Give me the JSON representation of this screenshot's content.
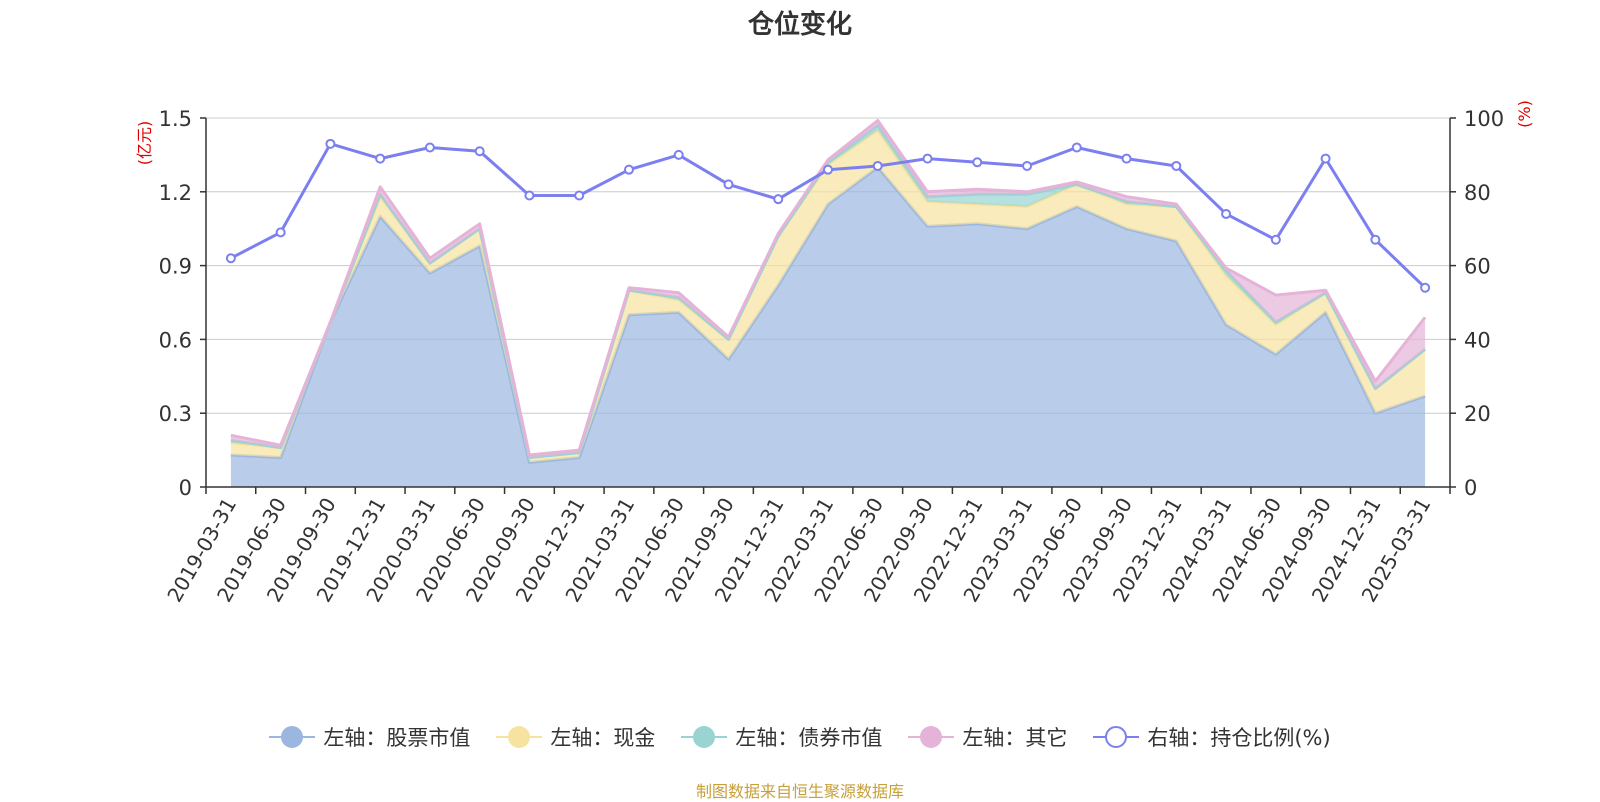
{
  "chart_data": {
    "type": "area",
    "title": "仓位变化",
    "left_axis_unit": "(亿元)",
    "right_axis_unit": "(%)",
    "left_ylim": [
      0,
      1.5
    ],
    "left_ticks": [
      "0",
      "0.3",
      "0.6",
      "0.9",
      "1.2",
      "1.5"
    ],
    "right_ylim": [
      0,
      100
    ],
    "right_ticks": [
      "0",
      "20",
      "40",
      "60",
      "80",
      "100"
    ],
    "grid": true,
    "legend_position": "bottom",
    "x": [
      "2019-03-31",
      "2019-06-30",
      "2019-09-30",
      "2019-12-31",
      "2020-03-31",
      "2020-06-30",
      "2020-09-30",
      "2020-12-31",
      "2021-03-31",
      "2021-06-30",
      "2021-09-30",
      "2021-12-31",
      "2022-03-31",
      "2022-06-30",
      "2022-09-30",
      "2022-12-31",
      "2023-03-31",
      "2023-06-30",
      "2023-09-30",
      "2023-12-31",
      "2024-03-31",
      "2024-06-30",
      "2024-09-30",
      "2024-12-31",
      "2025-03-31"
    ],
    "series": [
      {
        "name": "左轴：股票市值",
        "axis": "left",
        "kind": "stacked-area",
        "color": "#9bb7e0",
        "values": [
          0.13,
          0.12,
          0.67,
          1.1,
          0.87,
          0.98,
          0.1,
          0.12,
          0.7,
          0.71,
          0.52,
          0.82,
          1.15,
          1.3,
          1.06,
          1.07,
          1.05,
          1.14,
          1.05,
          1.0,
          0.66,
          0.54,
          0.71,
          0.3,
          0.37
        ]
      },
      {
        "name": "左轴：现金",
        "axis": "left",
        "kind": "stacked-area",
        "color": "#f7e3a0",
        "values": [
          0.05,
          0.04,
          0.0,
          0.08,
          0.04,
          0.07,
          0.02,
          0.02,
          0.1,
          0.05,
          0.08,
          0.2,
          0.16,
          0.15,
          0.1,
          0.08,
          0.09,
          0.09,
          0.1,
          0.14,
          0.2,
          0.12,
          0.08,
          0.1,
          0.19
        ]
      },
      {
        "name": "左轴：债券市值",
        "axis": "left",
        "kind": "stacked-area",
        "color": "#99d4d3",
        "values": [
          0.01,
          0.0,
          0.0,
          0.01,
          0.0,
          0.0,
          0.0,
          0.0,
          0.0,
          0.01,
          0.0,
          0.0,
          0.01,
          0.02,
          0.02,
          0.04,
          0.05,
          0.0,
          0.01,
          0.0,
          0.02,
          0.01,
          0.0,
          0.0,
          0.0
        ]
      },
      {
        "name": "左轴：其它",
        "axis": "left",
        "kind": "stacked-area",
        "color": "#e6b3d8",
        "values": [
          0.02,
          0.01,
          0.0,
          0.03,
          0.02,
          0.02,
          0.01,
          0.01,
          0.01,
          0.02,
          0.01,
          0.01,
          0.01,
          0.02,
          0.02,
          0.02,
          0.01,
          0.01,
          0.02,
          0.01,
          0.01,
          0.11,
          0.01,
          0.03,
          0.13
        ]
      },
      {
        "name": "右轴：持仓比例(%)",
        "axis": "right",
        "kind": "line",
        "color": "#7b7ff0",
        "values": [
          62,
          69,
          93,
          89,
          92,
          91,
          79,
          79,
          86,
          90,
          82,
          78,
          86,
          87,
          89,
          88,
          87,
          92,
          89,
          87,
          74,
          67,
          89,
          67,
          54
        ]
      }
    ]
  },
  "source_note": "制图数据来自恒生聚源数据库"
}
